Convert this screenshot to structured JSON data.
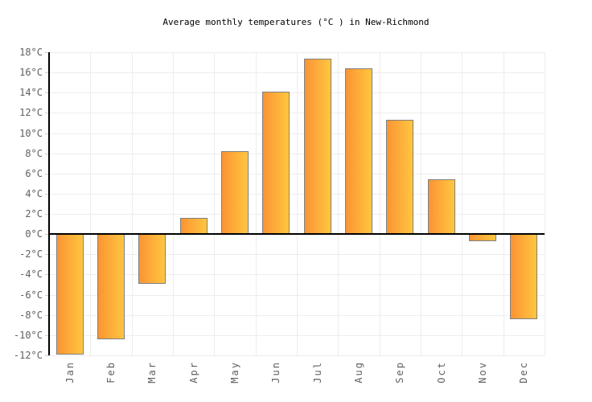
{
  "title": "Average monthly temperatures (°C ) in New-Richmond",
  "chart_data": {
    "type": "bar",
    "title": "Average monthly temperatures (°C ) in New-Richmond",
    "categories": [
      "Jan",
      "Feb",
      "Mar",
      "Apr",
      "May",
      "Jun",
      "Jul",
      "Aug",
      "Sep",
      "Oct",
      "Nov",
      "Dec"
    ],
    "values": [
      -11.9,
      -10.4,
      -4.9,
      1.6,
      8.2,
      14.1,
      17.4,
      16.4,
      11.3,
      5.4,
      -0.7,
      -8.4
    ],
    "xlabel": "",
    "ylabel": "",
    "ylim": [
      -12,
      18
    ],
    "ytick_step": 2,
    "ytick_suffix": "°C",
    "grid": true,
    "legend": false,
    "colors": {
      "bar_gradient_left": "#fa9433",
      "bar_gradient_right": "#ffc640",
      "bar_border": "#7f7f7f",
      "gridline": "#ededed",
      "tick": "#cccccc",
      "axis": "#000000",
      "label": "#606060",
      "title": "#000000",
      "background": "#ffffff"
    }
  }
}
